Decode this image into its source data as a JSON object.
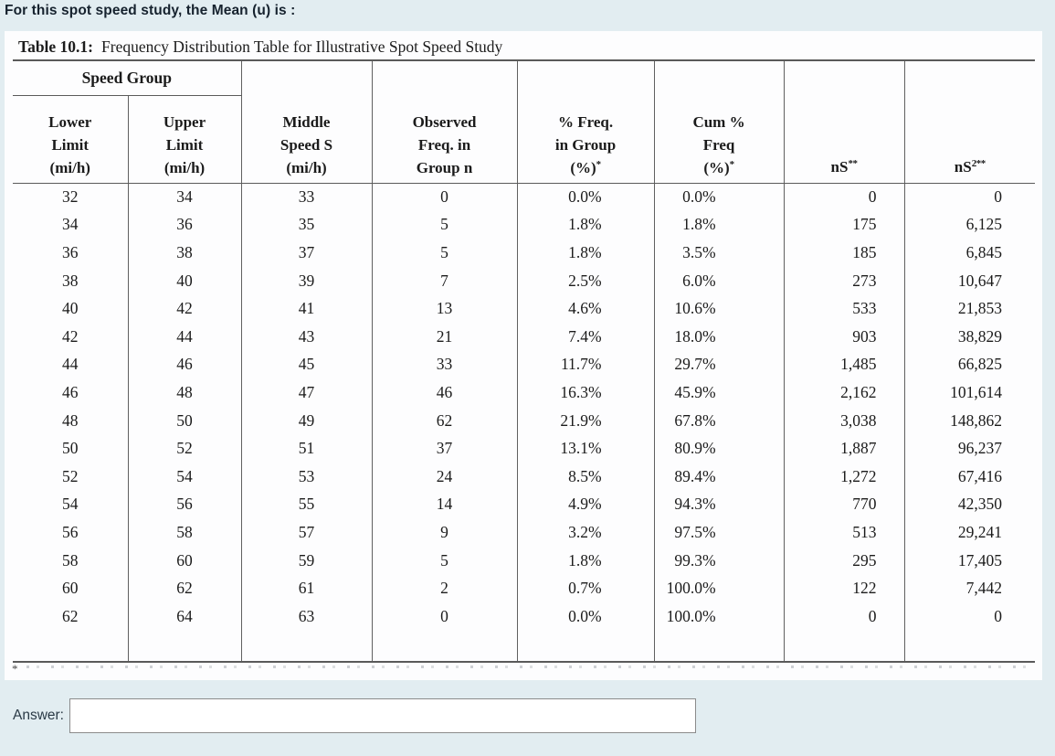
{
  "question": {
    "text": "For this spot speed study, the Mean (u) is :"
  },
  "answer": {
    "label": "Answer:",
    "value": ""
  },
  "table": {
    "title_bold": "Table 10.1:",
    "title_rest": "Frequency Distribution Table for Illustrative Spot Speed Study",
    "speed_group_label": "Speed Group",
    "footnote_marker": "*",
    "headers": [
      {
        "l1": "Lower",
        "l2": "Limit",
        "l3": "(mi/h)"
      },
      {
        "l1": "Upper",
        "l2": "Limit",
        "l3": "(mi/h)"
      },
      {
        "l1": "Middle",
        "l2": "Speed S",
        "l3": "(mi/h)"
      },
      {
        "l1": "Observed",
        "l2": "Freq. in",
        "l3": "Group n"
      },
      {
        "l1": "% Freq.",
        "l2": "in Group",
        "l3": "(%)",
        "sup": "*"
      },
      {
        "l1": "Cum %",
        "l2": "Freq",
        "l3": "(%)",
        "sup": "*"
      },
      {
        "l1": "nS",
        "sup": "**"
      },
      {
        "l1": "nS",
        "sup": "2**"
      }
    ],
    "rows": [
      [
        "32",
        "34",
        "33",
        "0",
        "0.0%",
        "0.0%",
        "0",
        "0"
      ],
      [
        "34",
        "36",
        "35",
        "5",
        "1.8%",
        "1.8%",
        "175",
        "6,125"
      ],
      [
        "36",
        "38",
        "37",
        "5",
        "1.8%",
        "3.5%",
        "185",
        "6,845"
      ],
      [
        "38",
        "40",
        "39",
        "7",
        "2.5%",
        "6.0%",
        "273",
        "10,647"
      ],
      [
        "40",
        "42",
        "41",
        "13",
        "4.6%",
        "10.6%",
        "533",
        "21,853"
      ],
      [
        "42",
        "44",
        "43",
        "21",
        "7.4%",
        "18.0%",
        "903",
        "38,829"
      ],
      [
        "44",
        "46",
        "45",
        "33",
        "11.7%",
        "29.7%",
        "1,485",
        "66,825"
      ],
      [
        "46",
        "48",
        "47",
        "46",
        "16.3%",
        "45.9%",
        "2,162",
        "101,614"
      ],
      [
        "48",
        "50",
        "49",
        "62",
        "21.9%",
        "67.8%",
        "3,038",
        "148,862"
      ],
      [
        "50",
        "52",
        "51",
        "37",
        "13.1%",
        "80.9%",
        "1,887",
        "96,237"
      ],
      [
        "52",
        "54",
        "53",
        "24",
        "8.5%",
        "89.4%",
        "1,272",
        "67,416"
      ],
      [
        "54",
        "56",
        "55",
        "14",
        "4.9%",
        "94.3%",
        "770",
        "42,350"
      ],
      [
        "56",
        "58",
        "57",
        "9",
        "3.2%",
        "97.5%",
        "513",
        "29,241"
      ],
      [
        "58",
        "60",
        "59",
        "5",
        "1.8%",
        "99.3%",
        "295",
        "17,405"
      ],
      [
        "60",
        "62",
        "61",
        "2",
        "0.7%",
        "100.0%",
        "122",
        "7,442"
      ],
      [
        "62",
        "64",
        "63",
        "0",
        "0.0%",
        "100.0%",
        "0",
        "0"
      ]
    ]
  }
}
